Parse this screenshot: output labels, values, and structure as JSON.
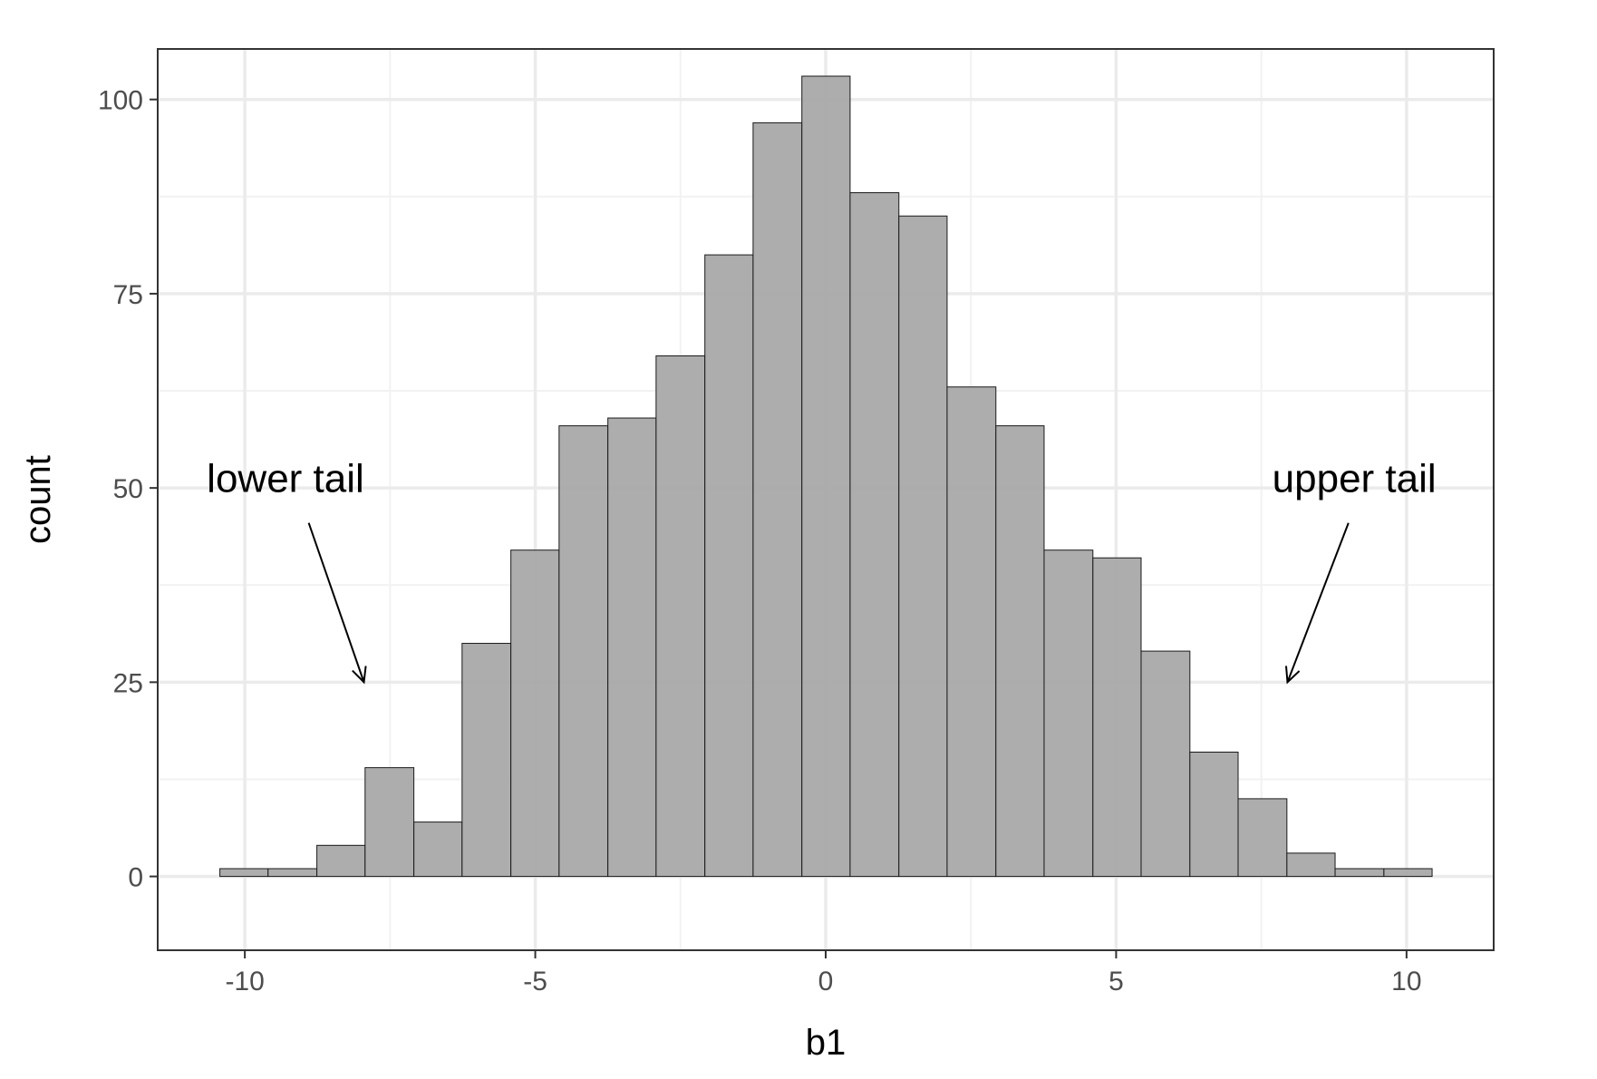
{
  "chart_data": {
    "type": "bar",
    "subtype": "histogram",
    "xlabel": "b1",
    "ylabel": "count",
    "xlim": [
      -11.5,
      11.5
    ],
    "ylim": [
      -9.5,
      106.5
    ],
    "x_ticks": [
      -10,
      -5,
      0,
      5,
      10
    ],
    "x_tick_labels": [
      "-10",
      "-5",
      "0",
      "5",
      "10"
    ],
    "y_ticks": [
      0,
      25,
      50,
      75,
      100
    ],
    "y_tick_labels": [
      "0",
      "25",
      "50",
      "75",
      "100"
    ],
    "x_minor_ticks": [
      -7.5,
      -2.5,
      2.5,
      7.5
    ],
    "y_minor_ticks": [
      12.5,
      37.5,
      62.5,
      87.5
    ],
    "grid": true,
    "theme": "bw",
    "bar_fill": "#a9a9a9",
    "bar_stroke": "#1a1a1a",
    "bins": [
      {
        "x0": -10.43,
        "x1": -9.6,
        "count": 1
      },
      {
        "x0": -9.6,
        "x1": -8.76,
        "count": 1
      },
      {
        "x0": -8.76,
        "x1": -7.93,
        "count": 4
      },
      {
        "x0": -7.93,
        "x1": -7.09,
        "count": 14
      },
      {
        "x0": -7.09,
        "x1": -6.26,
        "count": 7
      },
      {
        "x0": -6.26,
        "x1": -5.42,
        "count": 30
      },
      {
        "x0": -5.42,
        "x1": -4.59,
        "count": 42
      },
      {
        "x0": -4.59,
        "x1": -3.75,
        "count": 58
      },
      {
        "x0": -3.75,
        "x1": -2.92,
        "count": 59
      },
      {
        "x0": -2.92,
        "x1": -2.08,
        "count": 67
      },
      {
        "x0": -2.08,
        "x1": -1.25,
        "count": 80
      },
      {
        "x0": -1.25,
        "x1": -0.41,
        "count": 97
      },
      {
        "x0": -0.41,
        "x1": 0.42,
        "count": 103
      },
      {
        "x0": 0.42,
        "x1": 1.26,
        "count": 88
      },
      {
        "x0": 1.26,
        "x1": 2.09,
        "count": 85
      },
      {
        "x0": 2.09,
        "x1": 2.93,
        "count": 63
      },
      {
        "x0": 2.93,
        "x1": 3.76,
        "count": 58
      },
      {
        "x0": 3.76,
        "x1": 4.6,
        "count": 42
      },
      {
        "x0": 4.6,
        "x1": 5.43,
        "count": 41
      },
      {
        "x0": 5.43,
        "x1": 6.27,
        "count": 29
      },
      {
        "x0": 6.27,
        "x1": 7.1,
        "count": 16
      },
      {
        "x0": 7.1,
        "x1": 7.94,
        "count": 10
      },
      {
        "x0": 7.94,
        "x1": 8.77,
        "count": 3
      },
      {
        "x0": 8.77,
        "x1": 9.61,
        "count": 1
      },
      {
        "x0": 9.61,
        "x1": 10.44,
        "count": 1
      }
    ],
    "annotations": [
      {
        "text": "lower tail",
        "text_x": -9.3,
        "text_y": 49.5,
        "arrow_from": [
          -8.9,
          45.5
        ],
        "arrow_to": [
          -7.95,
          25
        ]
      },
      {
        "text": "upper tail",
        "text_x": 9.1,
        "text_y": 49.5,
        "arrow_from": [
          9.0,
          45.5
        ],
        "arrow_to": [
          7.95,
          25
        ]
      }
    ]
  }
}
